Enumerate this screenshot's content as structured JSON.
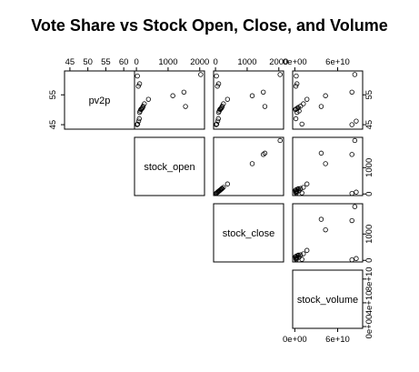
{
  "chart_data": {
    "type": "scatter",
    "subtype": "scatterplot-matrix",
    "title": "Vote Share vs Stock Open, Close, and Volume",
    "layout": "upper-triangle",
    "variables": [
      "pv2p",
      "stock_open",
      "stock_close",
      "stock_volume"
    ],
    "axis_ticks": {
      "pv2p": {
        "range": [
          43.5,
          63
        ],
        "top_ticks": [
          "45",
          "50",
          "55",
          "60"
        ],
        "side_ticks": [
          "45",
          "55"
        ]
      },
      "stock_open": {
        "range": [
          -60,
          2150
        ],
        "top_ticks": [
          "0",
          "1000",
          "2000"
        ],
        "side_ticks": [
          "0",
          "1000"
        ]
      },
      "stock_close": {
        "range": [
          -60,
          2150
        ],
        "top_ticks": [
          "0",
          "1000",
          "2000"
        ],
        "side_ticks": [
          "0",
          "1000"
        ]
      },
      "stock_volume": {
        "range": [
          -3000000000,
          95000000000
        ],
        "top_ticks": [
          "0e+00",
          "6e+10"
        ],
        "side_ticks": [
          "0e+00",
          "4e+10",
          "8e+10"
        ],
        "bottom_ticks": [
          "0e+00",
          "6e+10"
        ]
      }
    },
    "observations": {
      "pv2p": [
        45.0,
        45.2,
        46.2,
        47.0,
        49.1,
        49.6,
        50.1,
        50.3,
        50.5,
        50.8,
        51.1,
        51.2,
        52.0,
        53.5,
        54.7,
        55.9,
        57.9,
        58.7,
        61.3,
        61.8
      ],
      "stock_open": [
        20,
        40,
        70,
        90,
        100,
        120,
        140,
        160,
        180,
        200,
        1550,
        210,
        250,
        380,
        1150,
        1500,
        60,
        100,
        30,
        2030
      ],
      "stock_close": [
        20,
        40,
        70,
        90,
        100,
        120,
        140,
        160,
        180,
        200,
        1560,
        210,
        250,
        380,
        1160,
        1510,
        60,
        100,
        30,
        2040
      ],
      "stock_volume": [
        80000000000,
        10000000000,
        86000000000,
        1500000000,
        3000000000,
        6000000000,
        1000000000,
        2000000000,
        4000000000,
        5000000000,
        37000000000,
        8000000000,
        12000000000,
        17000000000,
        43000000000,
        80000000000,
        1500000000,
        3000000000,
        2000000000,
        84000000000
      ]
    },
    "grid": false,
    "legend": "none"
  }
}
